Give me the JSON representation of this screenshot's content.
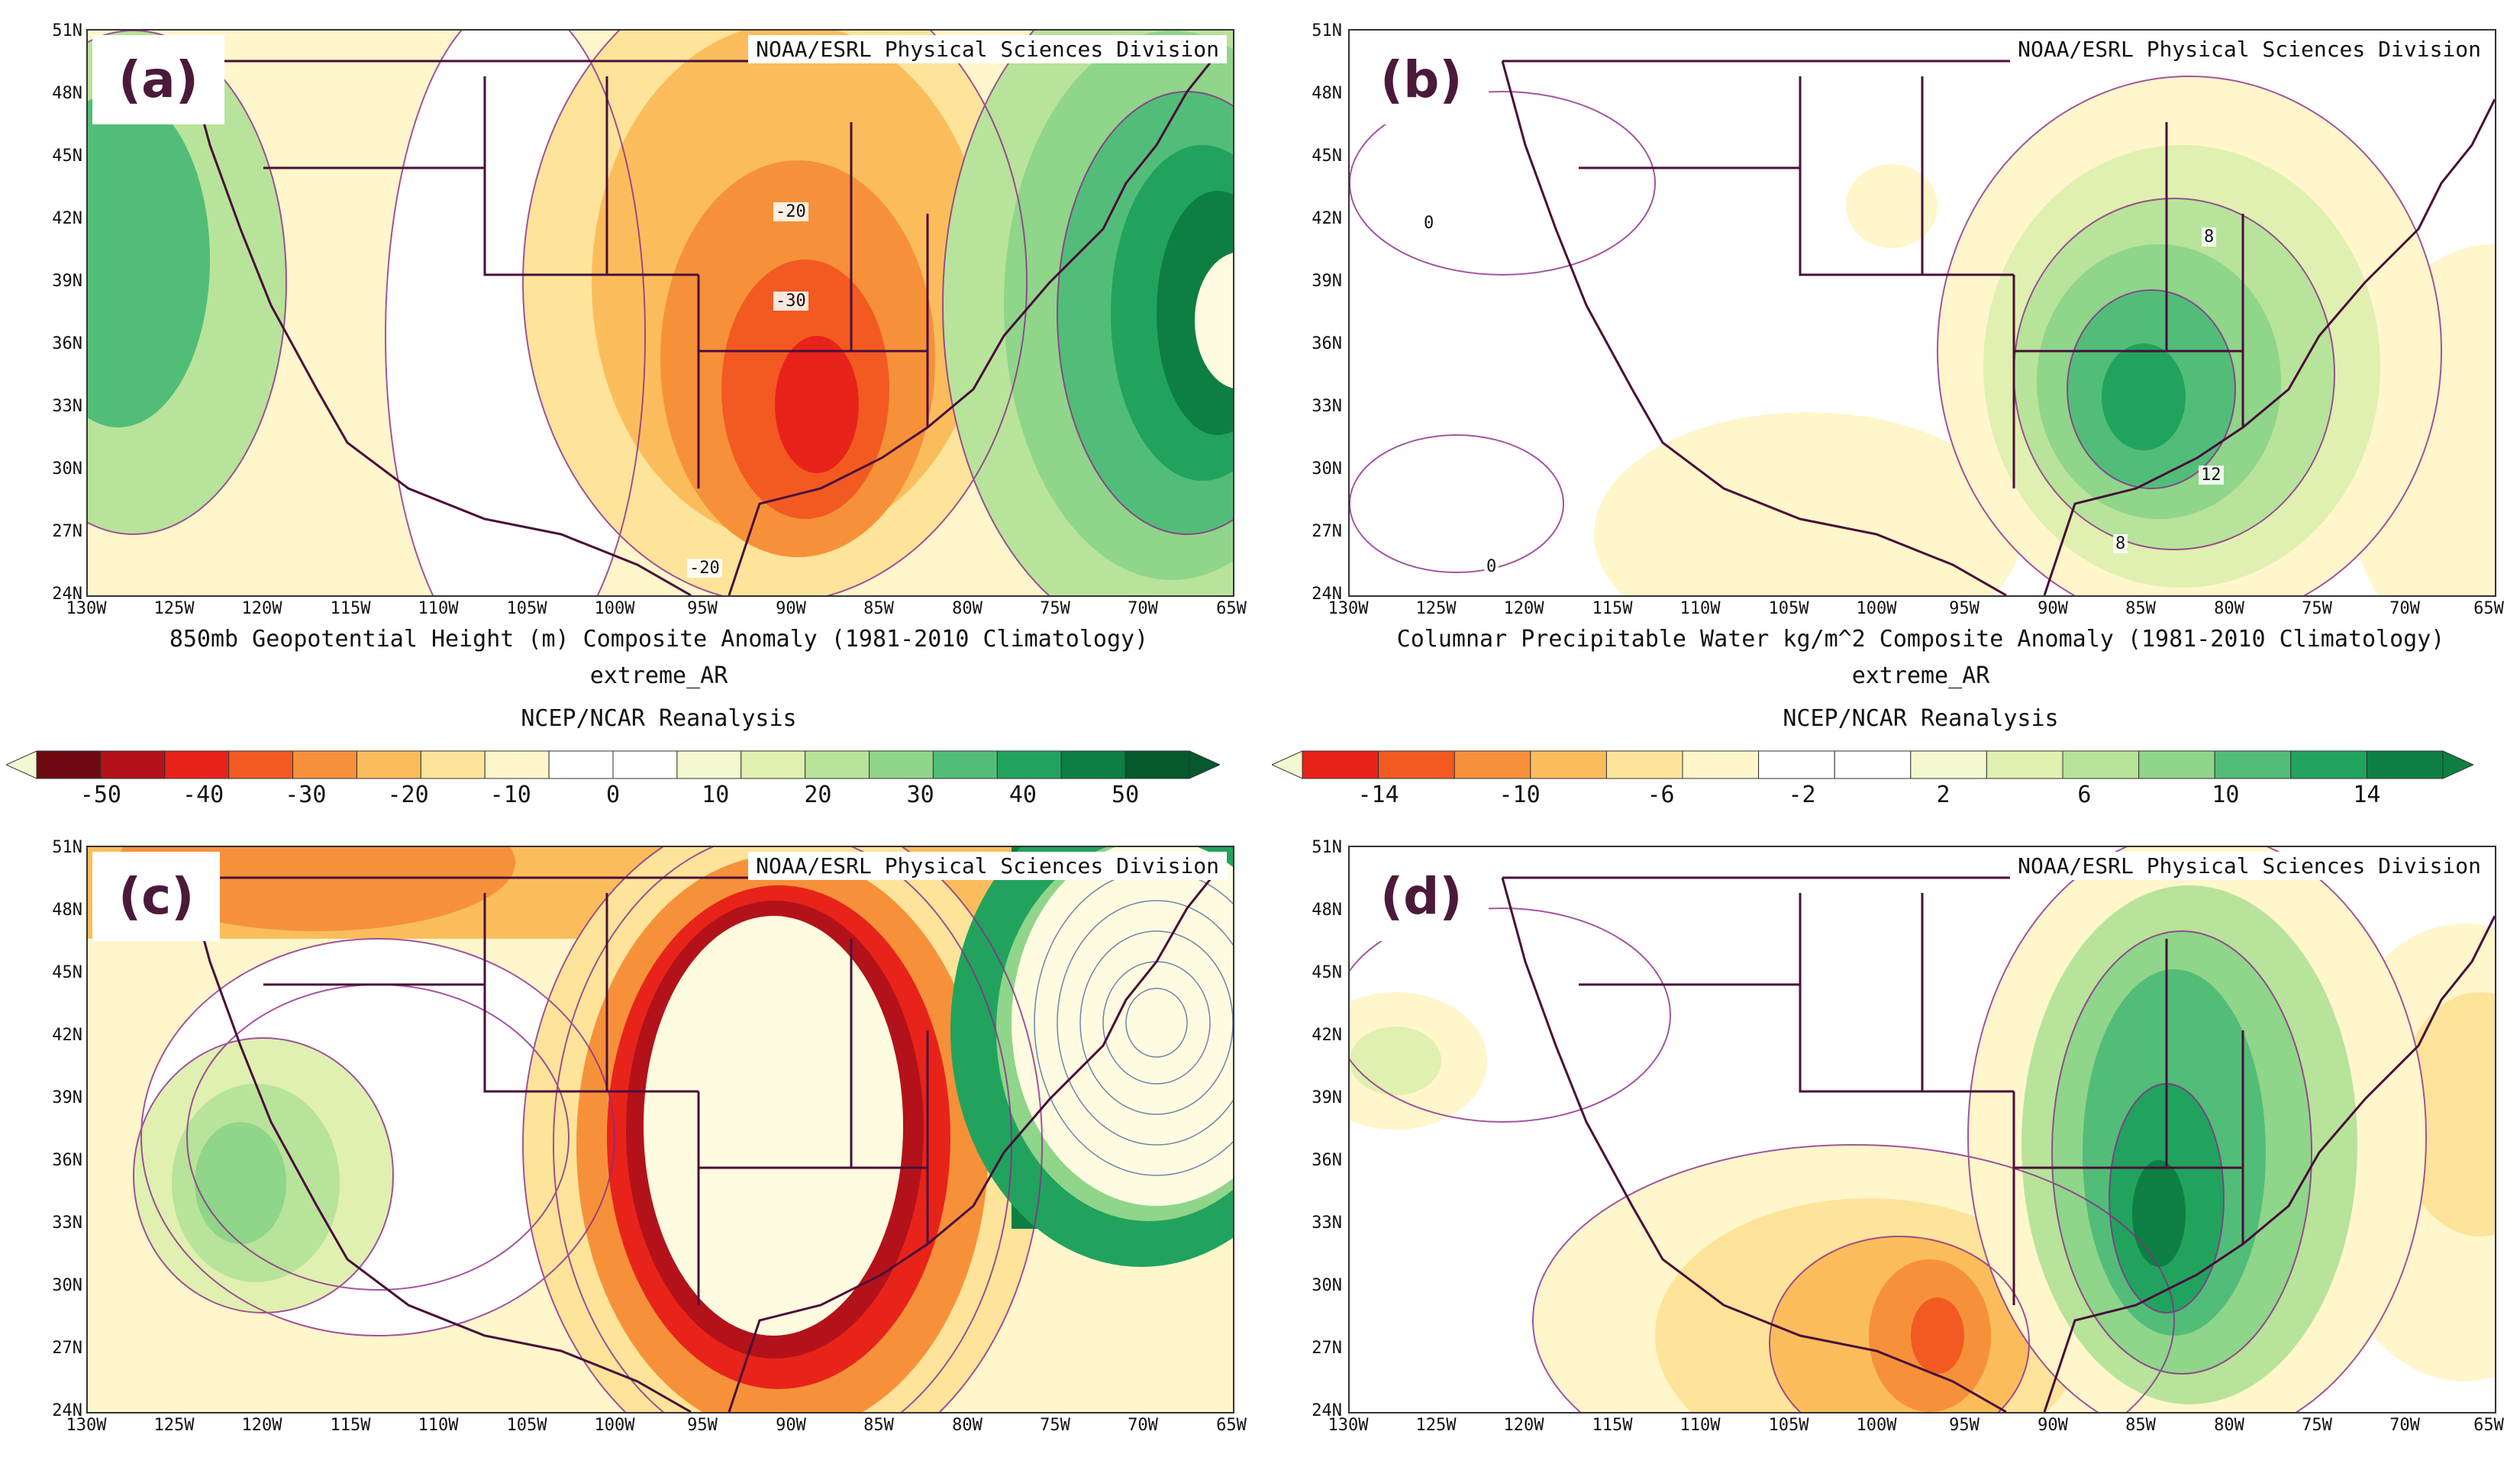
{
  "credit": "NOAA/ESRL Physical Sciences Division",
  "lat_ticks": [
    "51N",
    "48N",
    "45N",
    "42N",
    "39N",
    "36N",
    "33N",
    "30N",
    "27N",
    "24N"
  ],
  "lon_ticks": [
    "130W",
    "125W",
    "120W",
    "115W",
    "110W",
    "105W",
    "100W",
    "95W",
    "90W",
    "85W",
    "80W",
    "75W",
    "70W",
    "65W"
  ],
  "panels": {
    "a": {
      "label": "(a)",
      "contours": [
        "-20",
        "-30",
        "-20"
      ]
    },
    "b": {
      "label": "(b)",
      "contours": [
        "0",
        "8",
        "12",
        "8",
        "0"
      ]
    },
    "c": {
      "label": "(c)"
    },
    "d": {
      "label": "(d)"
    }
  },
  "captions": {
    "left_line1": "850mb Geopotential Height (m) Composite Anomaly (1981-2010 Climatology)",
    "left_line2": "extreme_AR",
    "left_source": "NCEP/NCAR Reanalysis",
    "right_line1": "Columnar Precipitable Water kg/m^2 Composite Anomaly (1981-2010 Climatology)",
    "right_line2": "extreme_AR",
    "right_source": "NCEP/NCAR Reanalysis"
  },
  "colorbars": {
    "left": {
      "ticks": [
        "-50",
        "-40",
        "-30",
        "-20",
        "-10",
        "0",
        "10",
        "20",
        "30",
        "40",
        "50"
      ],
      "colors": [
        "#6e0a12",
        "#b3121a",
        "#e8231a",
        "#f25a22",
        "#f6913a",
        "#fbbd5c",
        "#fde49a",
        "#fff6cc",
        "#ffffff",
        "#ffffff",
        "#f4f7cf",
        "#dff0b0",
        "#b8e39a",
        "#8fd58a",
        "#52bd78",
        "#21a35e",
        "#0d7f43",
        "#06582d"
      ]
    },
    "right": {
      "ticks": [
        "-14",
        "-10",
        "-6",
        "-2",
        "2",
        "6",
        "10",
        "14"
      ],
      "colors": [
        "#e8231a",
        "#f25a22",
        "#f6913a",
        "#fbbd5c",
        "#fde49a",
        "#fff6cc",
        "#ffffff",
        "#ffffff",
        "#f4f7cf",
        "#dff0b0",
        "#b8e39a",
        "#8fd58a",
        "#52bd78",
        "#21a35e",
        "#0d7f43"
      ]
    }
  }
}
